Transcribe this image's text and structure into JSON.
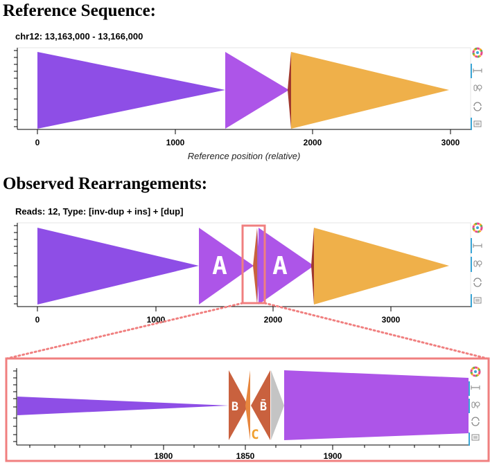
{
  "headings": {
    "reference": "Reference Sequence:",
    "observed": "Observed Rearrangements:"
  },
  "reference_plot": {
    "title": "chr12: 13,163,000 - 13,166,000",
    "xlabel": "Reference position (relative)",
    "ticks": [
      "0",
      "1000",
      "2000",
      "3000"
    ]
  },
  "observed_plot": {
    "title": "Reads: 12, Type: [inv-dup + ins] + [dup]",
    "ticks": [
      "0",
      "1000",
      "2000",
      "3000"
    ],
    "labels": [
      "A",
      "A"
    ]
  },
  "zoom_plot": {
    "ticks": [
      "1800",
      "1850",
      "1900"
    ],
    "labels": {
      "b": "B",
      "b_inv": "B̄",
      "c": "C"
    }
  },
  "colors": {
    "purple_dark": "#8e4ee6",
    "purple_light": "#ad55e8",
    "orange": "#efb04a",
    "rust": "#c9613e",
    "grey": "#c4c4c4",
    "highlight": "#f07f7f",
    "toolbar_blue": "#3aa6d6"
  },
  "toolbar_icons": [
    "logo-icon",
    "pan-icon",
    "zoom-icon",
    "reset-icon",
    "hover-icon"
  ]
}
